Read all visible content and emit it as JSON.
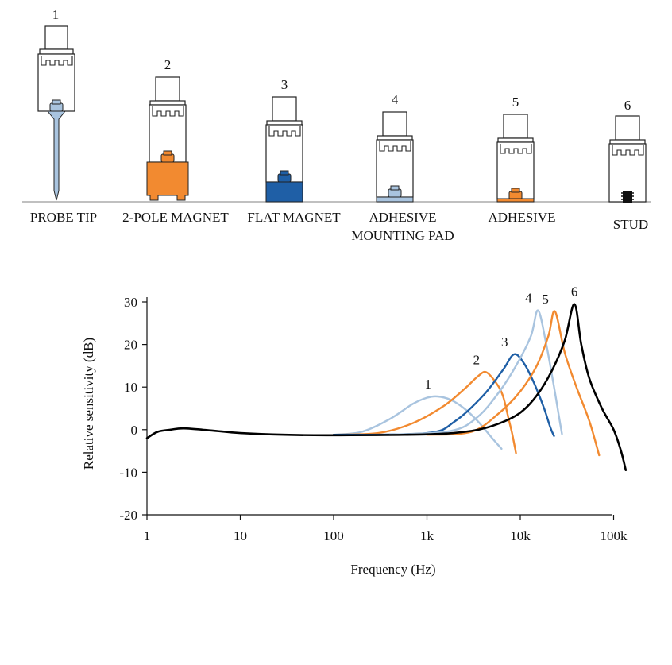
{
  "mountings": [
    {
      "number": "1",
      "label_lines": [
        "PROBE TIP"
      ]
    },
    {
      "number": "2",
      "label_lines": [
        "2-POLE MAGNET"
      ]
    },
    {
      "number": "3",
      "label_lines": [
        "FLAT MAGNET"
      ]
    },
    {
      "number": "4",
      "label_lines": [
        "ADHESIVE",
        "MOUNTING PAD"
      ]
    },
    {
      "number": "5",
      "label_lines": [
        "ADHESIVE"
      ]
    },
    {
      "number": "6",
      "label_lines": [
        "STUD"
      ]
    }
  ],
  "colors": {
    "light_blue": "#a9c4df",
    "orange": "#f28a30",
    "dark_blue": "#1f5fa6",
    "black": "#000000",
    "outline": "#222222"
  },
  "chart_data": {
    "type": "line",
    "xlabel": "Frequency (Hz)",
    "ylabel": "Relative sensitivity (dB)",
    "x_scale": "log",
    "xlim": [
      1,
      150000
    ],
    "ylim": [
      -20,
      30
    ],
    "x_ticks": [
      1,
      10,
      100,
      1000,
      10000,
      100000
    ],
    "x_tick_labels": [
      "1",
      "10",
      "100",
      "1k",
      "10k",
      "100k"
    ],
    "y_ticks": [
      30,
      20,
      10,
      0,
      -10,
      -20
    ],
    "y_tick_labels": [
      "30",
      "20",
      "10",
      "0",
      "-10",
      "-20"
    ],
    "grid": false,
    "series": [
      {
        "name": "1",
        "color": "#a9c4df",
        "points": [
          [
            100,
            -1.2
          ],
          [
            200,
            -0.5
          ],
          [
            400,
            2.5
          ],
          [
            700,
            6
          ],
          [
            1000,
            7.5
          ],
          [
            1300,
            7.8
          ],
          [
            1800,
            7
          ],
          [
            2500,
            5
          ],
          [
            3500,
            2
          ],
          [
            5000,
            -2
          ],
          [
            6300,
            -4.5
          ]
        ]
      },
      {
        "name": "2",
        "color": "#f28a30",
        "points": [
          [
            100,
            -1.2
          ],
          [
            300,
            -0.8
          ],
          [
            700,
            1.5
          ],
          [
            1500,
            5.5
          ],
          [
            2500,
            9.5
          ],
          [
            3500,
            12.5
          ],
          [
            4300,
            13.5
          ],
          [
            5500,
            11
          ],
          [
            6500,
            8
          ],
          [
            7600,
            2
          ],
          [
            8200,
            -1
          ],
          [
            9000,
            -5.5
          ]
        ]
      },
      {
        "name": "3",
        "color": "#1f5fa6",
        "points": [
          [
            100,
            -1.2
          ],
          [
            1000,
            -0.8
          ],
          [
            2000,
            2
          ],
          [
            4000,
            8
          ],
          [
            6500,
            14
          ],
          [
            8600,
            17.7
          ],
          [
            11000,
            15.5
          ],
          [
            14000,
            11
          ],
          [
            18000,
            5
          ],
          [
            21000,
            0.5
          ],
          [
            23000,
            -1.5
          ]
        ]
      },
      {
        "name": "4",
        "color": "#a9c4df",
        "points": [
          [
            400,
            -1.2
          ],
          [
            1800,
            -0.3
          ],
          [
            3500,
            3
          ],
          [
            6000,
            9
          ],
          [
            9000,
            15
          ],
          [
            13000,
            22
          ],
          [
            15500,
            28
          ],
          [
            19000,
            20
          ],
          [
            23000,
            10
          ],
          [
            26000,
            3
          ],
          [
            28000,
            -1
          ]
        ]
      },
      {
        "name": "5",
        "color": "#f28a30",
        "points": [
          [
            1000,
            -1.2
          ],
          [
            3000,
            -0.5
          ],
          [
            6000,
            4
          ],
          [
            10000,
            9
          ],
          [
            15000,
            15
          ],
          [
            20000,
            22
          ],
          [
            23500,
            27.8
          ],
          [
            30000,
            18
          ],
          [
            40000,
            10
          ],
          [
            55000,
            2
          ],
          [
            70000,
            -6
          ]
        ]
      },
      {
        "name": "6",
        "color": "#000000",
        "points": [
          [
            1,
            -2
          ],
          [
            1.3,
            -0.5
          ],
          [
            1.8,
            0
          ],
          [
            2.5,
            0.3
          ],
          [
            5,
            -0.2
          ],
          [
            10,
            -0.8
          ],
          [
            30,
            -1.2
          ],
          [
            100,
            -1.3
          ],
          [
            1000,
            -1.1
          ],
          [
            3000,
            -0.3
          ],
          [
            6000,
            1.5
          ],
          [
            10000,
            4
          ],
          [
            15000,
            8
          ],
          [
            22000,
            14
          ],
          [
            30000,
            21
          ],
          [
            38000,
            29.5
          ],
          [
            45000,
            20
          ],
          [
            55000,
            12
          ],
          [
            75000,
            5
          ],
          [
            100000,
            0
          ],
          [
            120000,
            -5
          ],
          [
            135000,
            -9.5
          ]
        ]
      }
    ]
  }
}
